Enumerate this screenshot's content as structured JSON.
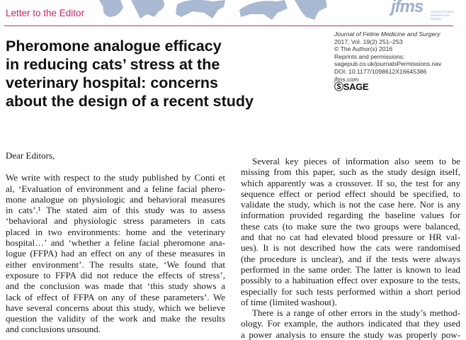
{
  "header": {
    "section_label": "Letter to the Editor",
    "accent_color": "#c2276e",
    "banner_color": "#a9b9d2",
    "logo": {
      "text": "jfms",
      "subtitle": "Journal of Feline Medicine and Surgery"
    }
  },
  "article": {
    "title_lines": [
      "Pheromone analogue efficacy",
      "in reducing cats’ stress at the",
      "veterinary hospital: concerns",
      "about the design of a recent study"
    ]
  },
  "meta": {
    "journal": "Journal of Feline Medicine and Surgery",
    "volume": "2017, Vol. 19(2) 251–253",
    "copyright": "© The Author(s) 2016",
    "reprints": "Reprints and permissions:",
    "reprints_url": "sagepub.co.uk/journalsPermissions.nav",
    "doi": "DOI: 10.1177/1098612X16645386",
    "site": "jfms.com",
    "publisher": "SAGE"
  },
  "body": {
    "greeting": "Dear Editors,",
    "left_lines": [
      "We write with respect to the study published by Conti et",
      "al, ‘Evaluation of environment and a feline facial phero-",
      "mone analogue on physiologic and behavioral measures",
      "in cats’.¹ The stated aim of this study was to assess",
      "‘behavioral and physiologic stress parameters in cats",
      "placed in two environments: home and the veterinary",
      "hospital…’ and ‘whether a feline facial pheromone ana-",
      "logue (FFPA) had an effect on any of these measures in",
      "either environment’. The results state, ‘We found that",
      "exposure to FFPA did not reduce the effects of stress’,",
      "and the conclusion was made that ‘this study shows a",
      "lack of effect of FFPA on any of these parameters’. We",
      "have several concerns about this study, which we believe",
      "question the validity of the work and make the results",
      "and conclusions unsound."
    ],
    "right_lines": [
      "Several key pieces of information also seem to be",
      "missing from this paper, such as the study design itself,",
      "which apparently was a crossover. If so, the test for any",
      "sequence effect or period effect should be specified, to",
      "validate the study, which is not the case here. Nor is any",
      "information provided regarding the baseline values for",
      "these cats (to make sure the two groups were balanced,",
      "and that no cat had elevated blood pressure or HR val-",
      "ues). It is not described how the cats were randomised",
      "(the procedure is unclear), and if the tests were always",
      "performed in the same order. The latter is known to lead",
      "possibly to a habituation effect over exposure to the tests,",
      "especially for such tests performed within a short period",
      "of time (limited washout).",
      "There is a range of other errors in the study’s method-",
      "ology. For example, the authors indicated that they used",
      "a power analysis to ensure the study was properly pow-"
    ]
  }
}
